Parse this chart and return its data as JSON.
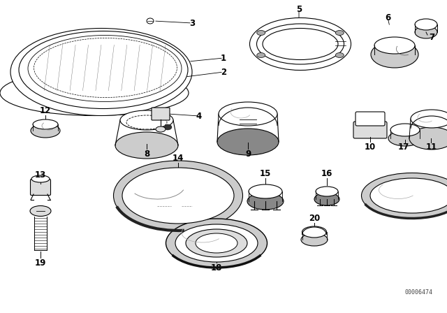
{
  "background_color": "#ffffff",
  "diagram_code": "00006474",
  "fig_w": 6.4,
  "fig_h": 4.48,
  "dpi": 100
}
